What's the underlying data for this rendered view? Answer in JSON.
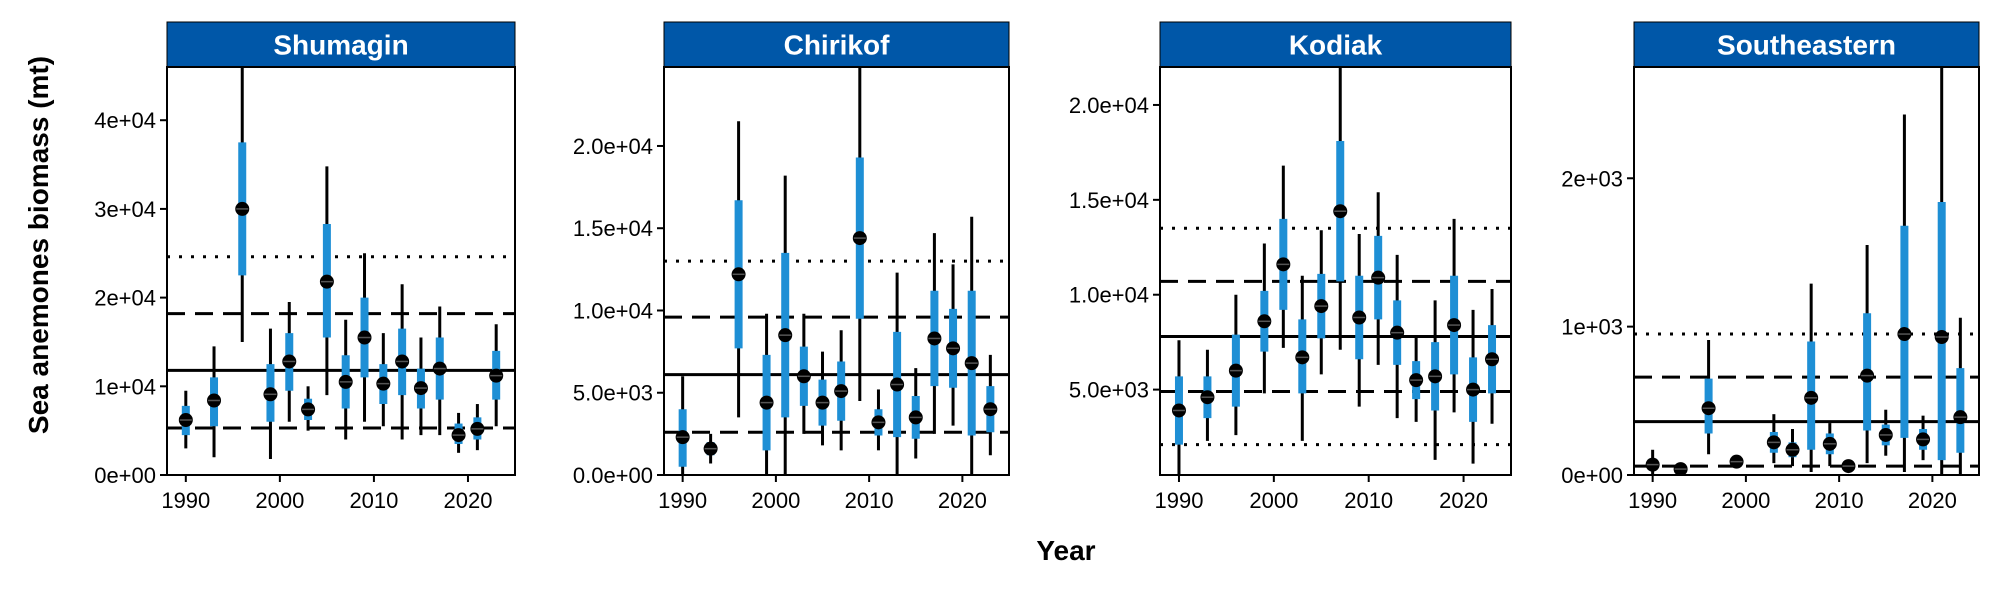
{
  "colors": {
    "strip": "#0057A8",
    "inner_interval": "#1E8FD5",
    "outer_interval": "#000000",
    "point": "#000000"
  },
  "axes": {
    "xlabel": "Year",
    "ylabel": "Sea anemones biomass (mt)"
  },
  "chart_data": [
    {
      "type": "errorbar",
      "panel": "Shumagin",
      "xlim": [
        1988,
        2025
      ],
      "ylim": [
        0,
        46000
      ],
      "x_ticks": [
        1990,
        2000,
        2010,
        2020
      ],
      "y_ticks": [
        0,
        10000,
        20000,
        30000,
        40000
      ],
      "y_tick_labels": [
        "0e+00",
        "1e+04",
        "2e+04",
        "3e+04",
        "4e+04"
      ],
      "reference_lines": {
        "mean": 11800,
        "dashed": [
          5300,
          18200
        ],
        "dotted": [
          24600
        ]
      },
      "points": [
        {
          "x": 1990,
          "y": 6200,
          "lo50": 4500,
          "hi50": 7800,
          "lo95": 3000,
          "hi95": 9500
        },
        {
          "x": 1993,
          "y": 8400,
          "lo50": 5500,
          "hi50": 11000,
          "lo95": 2000,
          "hi95": 14500
        },
        {
          "x": 1996,
          "y": 30000,
          "lo50": 22500,
          "hi50": 37500,
          "lo95": 15000,
          "hi95": 46000
        },
        {
          "x": 1999,
          "y": 9100,
          "lo50": 6000,
          "hi50": 12500,
          "lo95": 1800,
          "hi95": 16500
        },
        {
          "x": 2001,
          "y": 12800,
          "lo50": 9500,
          "hi50": 16000,
          "lo95": 6000,
          "hi95": 19500
        },
        {
          "x": 2003,
          "y": 7400,
          "lo50": 6200,
          "hi50": 8600,
          "lo95": 5000,
          "hi95": 10000
        },
        {
          "x": 2005,
          "y": 21800,
          "lo50": 15500,
          "hi50": 28300,
          "lo95": 9000,
          "hi95": 34800
        },
        {
          "x": 2007,
          "y": 10500,
          "lo50": 7500,
          "hi50": 13500,
          "lo95": 4000,
          "hi95": 17500
        },
        {
          "x": 2009,
          "y": 15500,
          "lo50": 11000,
          "hi50": 20000,
          "lo95": 6000,
          "hi95": 25000
        },
        {
          "x": 2011,
          "y": 10300,
          "lo50": 8000,
          "hi50": 12500,
          "lo95": 5500,
          "hi95": 16000
        },
        {
          "x": 2013,
          "y": 12800,
          "lo50": 9000,
          "hi50": 16500,
          "lo95": 4000,
          "hi95": 21500
        },
        {
          "x": 2015,
          "y": 9800,
          "lo50": 7500,
          "hi50": 12000,
          "lo95": 4500,
          "hi95": 15500
        },
        {
          "x": 2017,
          "y": 12000,
          "lo50": 8500,
          "hi50": 15500,
          "lo95": 4500,
          "hi95": 19000
        },
        {
          "x": 2019,
          "y": 4500,
          "lo50": 3500,
          "hi50": 5800,
          "lo95": 2500,
          "hi95": 7000
        },
        {
          "x": 2021,
          "y": 5200,
          "lo50": 4000,
          "hi50": 6500,
          "lo95": 2800,
          "hi95": 8000
        },
        {
          "x": 2023,
          "y": 11200,
          "lo50": 8500,
          "hi50": 14000,
          "lo95": 5500,
          "hi95": 17000
        }
      ]
    },
    {
      "type": "errorbar",
      "panel": "Chirikof",
      "xlim": [
        1988,
        2025
      ],
      "ylim": [
        0,
        24800
      ],
      "x_ticks": [
        1990,
        2000,
        2010,
        2020
      ],
      "y_ticks": [
        0,
        5000,
        10000,
        15000,
        20000
      ],
      "y_tick_labels": [
        "0.0e+00",
        "5.0e+03",
        "1.0e+04",
        "1.5e+04",
        "2.0e+04"
      ],
      "reference_lines": {
        "mean": 6100,
        "dashed": [
          2600,
          9600
        ],
        "dotted": [
          13000
        ]
      },
      "points": [
        {
          "x": 1990,
          "y": 2300,
          "lo50": 500,
          "hi50": 4000,
          "lo95": 0,
          "hi95": 6000
        },
        {
          "x": 1993,
          "y": 1600,
          "lo50": 1200,
          "hi50": 2000,
          "lo95": 700,
          "hi95": 2500
        },
        {
          "x": 1996,
          "y": 12200,
          "lo50": 7700,
          "hi50": 16700,
          "lo95": 3500,
          "hi95": 21500
        },
        {
          "x": 1999,
          "y": 4400,
          "lo50": 1500,
          "hi50": 7300,
          "lo95": 0,
          "hi95": 9800
        },
        {
          "x": 2001,
          "y": 8500,
          "lo50": 3500,
          "hi50": 13500,
          "lo95": 0,
          "hi95": 18200
        },
        {
          "x": 2003,
          "y": 6000,
          "lo50": 4200,
          "hi50": 7800,
          "lo95": 2500,
          "hi95": 9800
        },
        {
          "x": 2005,
          "y": 4400,
          "lo50": 3000,
          "hi50": 5800,
          "lo95": 1800,
          "hi95": 7500
        },
        {
          "x": 2007,
          "y": 5100,
          "lo50": 3300,
          "hi50": 6900,
          "lo95": 1500,
          "hi95": 8800
        },
        {
          "x": 2009,
          "y": 14400,
          "lo50": 9500,
          "hi50": 19300,
          "lo95": 4500,
          "hi95": 24800
        },
        {
          "x": 2011,
          "y": 3200,
          "lo50": 2400,
          "hi50": 4000,
          "lo95": 1500,
          "hi95": 5200
        },
        {
          "x": 2013,
          "y": 5500,
          "lo50": 2300,
          "hi50": 8700,
          "lo95": 0,
          "hi95": 12300
        },
        {
          "x": 2015,
          "y": 3500,
          "lo50": 2200,
          "hi50": 4800,
          "lo95": 1000,
          "hi95": 6500
        },
        {
          "x": 2017,
          "y": 8300,
          "lo50": 5400,
          "hi50": 11200,
          "lo95": 2500,
          "hi95": 14700
        },
        {
          "x": 2019,
          "y": 7700,
          "lo50": 5300,
          "hi50": 10100,
          "lo95": 3000,
          "hi95": 12800
        },
        {
          "x": 2021,
          "y": 6800,
          "lo50": 2400,
          "hi50": 11200,
          "lo95": 0,
          "hi95": 15700
        },
        {
          "x": 2023,
          "y": 4000,
          "lo50": 2600,
          "hi50": 5400,
          "lo95": 1200,
          "hi95": 7300
        }
      ]
    },
    {
      "type": "errorbar",
      "panel": "Kodiak",
      "xlim": [
        1988,
        2025
      ],
      "ylim": [
        500,
        22000
      ],
      "x_ticks": [
        1990,
        2000,
        2010,
        2020
      ],
      "y_ticks": [
        5000,
        10000,
        15000,
        20000
      ],
      "y_tick_labels": [
        "5.0e+03",
        "1.0e+04",
        "1.5e+04",
        "2.0e+04"
      ],
      "reference_lines": {
        "mean": 7800,
        "dashed": [
          4900,
          10700
        ],
        "dotted": [
          2100,
          13500
        ]
      },
      "points": [
        {
          "x": 1990,
          "y": 3900,
          "lo50": 2100,
          "hi50": 5700,
          "lo95": 500,
          "hi95": 7600
        },
        {
          "x": 1993,
          "y": 4600,
          "lo50": 3500,
          "hi50": 5700,
          "lo95": 2300,
          "hi95": 7100
        },
        {
          "x": 1996,
          "y": 6000,
          "lo50": 4100,
          "hi50": 7900,
          "lo95": 2600,
          "hi95": 10000
        },
        {
          "x": 1999,
          "y": 8600,
          "lo50": 7000,
          "hi50": 10200,
          "lo95": 4800,
          "hi95": 12700
        },
        {
          "x": 2001,
          "y": 11600,
          "lo50": 9200,
          "hi50": 14000,
          "lo95": 7200,
          "hi95": 16800
        },
        {
          "x": 2003,
          "y": 6700,
          "lo50": 4800,
          "hi50": 8700,
          "lo95": 2300,
          "hi95": 11000
        },
        {
          "x": 2005,
          "y": 9400,
          "lo50": 7700,
          "hi50": 11100,
          "lo95": 5800,
          "hi95": 13400
        },
        {
          "x": 2007,
          "y": 14400,
          "lo50": 10700,
          "hi50": 18100,
          "lo95": 7100,
          "hi95": 22000
        },
        {
          "x": 2009,
          "y": 8800,
          "lo50": 6600,
          "hi50": 11000,
          "lo95": 4100,
          "hi95": 13200
        },
        {
          "x": 2011,
          "y": 10900,
          "lo50": 8700,
          "hi50": 13100,
          "lo95": 6300,
          "hi95": 15400
        },
        {
          "x": 2013,
          "y": 8000,
          "lo50": 6300,
          "hi50": 9700,
          "lo95": 3500,
          "hi95": 12100
        },
        {
          "x": 2015,
          "y": 5500,
          "lo50": 4500,
          "hi50": 6500,
          "lo95": 3300,
          "hi95": 7800
        },
        {
          "x": 2017,
          "y": 5700,
          "lo50": 3900,
          "hi50": 7500,
          "lo95": 1300,
          "hi95": 9700
        },
        {
          "x": 2019,
          "y": 8400,
          "lo50": 5800,
          "hi50": 11000,
          "lo95": 3800,
          "hi95": 14000
        },
        {
          "x": 2021,
          "y": 5000,
          "lo50": 3300,
          "hi50": 6700,
          "lo95": 1100,
          "hi95": 9200
        },
        {
          "x": 2023,
          "y": 6600,
          "lo50": 4800,
          "hi50": 8400,
          "lo95": 3200,
          "hi95": 10300
        }
      ]
    },
    {
      "type": "errorbar",
      "panel": "Southeastern",
      "xlim": [
        1988,
        2025
      ],
      "ylim": [
        0,
        2750
      ],
      "x_ticks": [
        1990,
        2000,
        2010,
        2020
      ],
      "y_ticks": [
        0,
        1000,
        2000
      ],
      "y_tick_labels": [
        "0e+00",
        "1e+03",
        "2e+03"
      ],
      "reference_lines": {
        "mean": 360,
        "dashed": [
          60,
          660
        ],
        "dotted": [
          950
        ]
      },
      "points": [
        {
          "x": 1990,
          "y": 70,
          "lo50": 30,
          "hi50": 110,
          "lo95": 0,
          "hi95": 170
        },
        {
          "x": 1993,
          "y": 40,
          "lo50": 30,
          "hi50": 50,
          "lo95": 20,
          "hi95": 60
        },
        {
          "x": 1996,
          "y": 450,
          "lo50": 280,
          "hi50": 650,
          "lo95": 140,
          "hi95": 910
        },
        {
          "x": 1999,
          "y": 90,
          "lo50": 70,
          "hi50": 110,
          "lo95": 60,
          "hi95": 120
        },
        {
          "x": 2003,
          "y": 220,
          "lo50": 150,
          "hi50": 290,
          "lo95": 80,
          "hi95": 410
        },
        {
          "x": 2005,
          "y": 170,
          "lo50": 120,
          "hi50": 220,
          "lo95": 60,
          "hi95": 310
        },
        {
          "x": 2007,
          "y": 520,
          "lo50": 170,
          "hi50": 900,
          "lo95": 20,
          "hi95": 1290
        },
        {
          "x": 2009,
          "y": 210,
          "lo50": 140,
          "hi50": 280,
          "lo95": 60,
          "hi95": 350
        },
        {
          "x": 2011,
          "y": 60,
          "lo50": 45,
          "hi50": 75,
          "lo95": 30,
          "hi95": 90
        },
        {
          "x": 2013,
          "y": 670,
          "lo50": 300,
          "hi50": 1090,
          "lo95": 80,
          "hi95": 1550
        },
        {
          "x": 2015,
          "y": 270,
          "lo50": 200,
          "hi50": 340,
          "lo95": 130,
          "hi95": 440
        },
        {
          "x": 2017,
          "y": 950,
          "lo50": 250,
          "hi50": 1680,
          "lo95": 20,
          "hi95": 2430
        },
        {
          "x": 2019,
          "y": 240,
          "lo50": 170,
          "hi50": 310,
          "lo95": 100,
          "hi95": 400
        },
        {
          "x": 2021,
          "y": 930,
          "lo50": 100,
          "hi50": 1840,
          "lo95": 0,
          "hi95": 2750
        },
        {
          "x": 2023,
          "y": 390,
          "lo50": 150,
          "hi50": 720,
          "lo95": 0,
          "hi95": 1060
        }
      ]
    }
  ]
}
